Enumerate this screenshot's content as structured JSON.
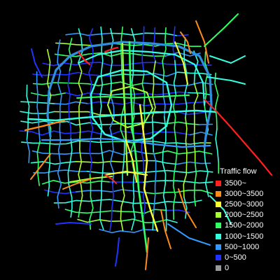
{
  "legend": {
    "title": "Traffic flow",
    "items": [
      {
        "label": "3500~",
        "color": "#ff2020"
      },
      {
        "label": "3000~3500",
        "color": "#ff8c1a"
      },
      {
        "label": "2500~3000",
        "color": "#ffff33"
      },
      {
        "label": "2000~2500",
        "color": "#aaff33"
      },
      {
        "label": "1500~2000",
        "color": "#33ff66"
      },
      {
        "label": "1000~1500",
        "color": "#33ffe0"
      },
      {
        "label": "500~1000",
        "color": "#3399ff"
      },
      {
        "label": "0~500",
        "color": "#2233ff"
      },
      {
        "label": "0",
        "color": "#999999"
      }
    ]
  },
  "colors": {
    "background": "#000000",
    "ring_road": "#2f8fdc",
    "flow_red": "#ff2020",
    "flow_orange": "#ff8c1a",
    "flow_yellow": "#ffff33",
    "flow_lime": "#aaff33",
    "flow_green": "#33ff66",
    "flow_cyan": "#33ffe0",
    "flow_lightblue": "#3399ff",
    "flow_blue": "#2233ff"
  }
}
